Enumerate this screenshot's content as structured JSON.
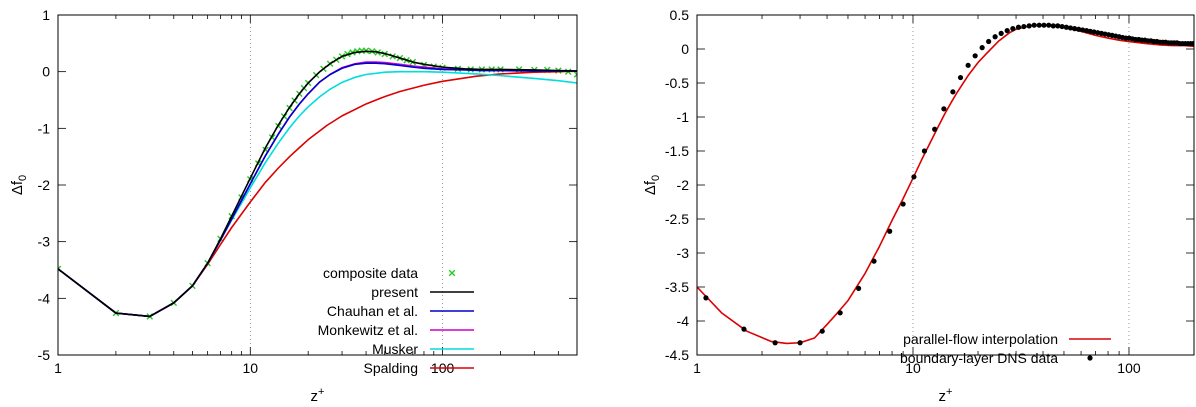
{
  "chart_data": [
    {
      "type": "line",
      "title": "",
      "xlabel": "z",
      "xlabel_sup": "+",
      "ylabel": "Δf",
      "ylabel_sub": "0",
      "x_scale": "log",
      "xlim": [
        1,
        500
      ],
      "ylim": [
        -5,
        1
      ],
      "x_ticks": [
        {
          "value": 1,
          "label": "1"
        },
        {
          "value": 10,
          "label": "10"
        },
        {
          "value": 100,
          "label": "100"
        }
      ],
      "y_ticks": [
        {
          "value": 1,
          "label": "1"
        },
        {
          "value": 0,
          "label": "0"
        },
        {
          "value": -1,
          "label": "-1"
        },
        {
          "value": -2,
          "label": "-2"
        },
        {
          "value": -3,
          "label": "-3"
        },
        {
          "value": -4,
          "label": "-4"
        },
        {
          "value": -5,
          "label": "-5"
        }
      ],
      "grid": "dotted",
      "legend_position": "bottom-right",
      "series": [
        {
          "name": "composite data",
          "style": "markers",
          "marker": "x",
          "color": "#22cc22",
          "x": [
            1,
            2,
            3,
            4,
            5,
            6,
            7,
            8,
            9,
            10,
            11,
            12,
            13,
            14,
            15,
            16,
            17,
            18,
            19,
            20,
            22,
            24,
            26,
            28,
            30,
            32,
            34,
            36,
            38,
            40,
            43,
            46,
            50,
            55,
            60,
            65,
            70,
            80,
            90,
            100,
            120,
            140,
            160,
            180,
            200,
            250,
            300,
            350,
            400,
            450,
            500
          ],
          "y": [
            -3.48,
            -4.26,
            -4.32,
            -4.08,
            -3.78,
            -3.38,
            -2.95,
            -2.55,
            -2.22,
            -1.9,
            -1.62,
            -1.38,
            -1.16,
            -0.96,
            -0.79,
            -0.64,
            -0.51,
            -0.39,
            -0.29,
            -0.2,
            -0.06,
            0.05,
            0.14,
            0.21,
            0.27,
            0.31,
            0.34,
            0.36,
            0.37,
            0.37,
            0.36,
            0.34,
            0.31,
            0.27,
            0.24,
            0.2,
            0.17,
            0.12,
            0.09,
            0.07,
            0.05,
            0.04,
            0.04,
            0.04,
            0.04,
            0.04,
            0.03,
            0.03,
            0.02,
            0.0,
            -0.05
          ]
        },
        {
          "name": "present",
          "style": "line",
          "color": "#000000",
          "x": [
            1,
            2,
            3,
            4,
            5,
            6,
            7,
            8,
            10,
            12,
            14,
            16,
            18,
            20,
            23,
            26,
            30,
            35,
            40,
            45,
            50,
            60,
            70,
            80,
            100,
            130,
            160,
            200,
            300,
            400,
            500
          ],
          "y": [
            -3.48,
            -4.26,
            -4.32,
            -4.08,
            -3.78,
            -3.38,
            -2.95,
            -2.55,
            -1.88,
            -1.34,
            -0.94,
            -0.63,
            -0.39,
            -0.2,
            0.0,
            0.14,
            0.27,
            0.34,
            0.36,
            0.35,
            0.32,
            0.24,
            0.17,
            0.13,
            0.08,
            0.05,
            0.04,
            0.04,
            0.03,
            0.02,
            0.01
          ]
        },
        {
          "name": "Chauhan et al.",
          "style": "line",
          "color": "#0000cc",
          "x": [
            1,
            2,
            3,
            4,
            5,
            6,
            7,
            8,
            10,
            12,
            14,
            16,
            18,
            20,
            23,
            26,
            30,
            35,
            40,
            45,
            50,
            60,
            70,
            80,
            100,
            130,
            160,
            200,
            300,
            400,
            500
          ],
          "y": [
            -3.48,
            -4.26,
            -4.32,
            -4.08,
            -3.78,
            -3.38,
            -2.97,
            -2.6,
            -1.98,
            -1.48,
            -1.1,
            -0.8,
            -0.57,
            -0.39,
            -0.18,
            -0.05,
            0.06,
            0.13,
            0.15,
            0.15,
            0.14,
            0.11,
            0.08,
            0.06,
            0.04,
            0.03,
            0.02,
            0.02,
            0.01,
            0.01,
            0.01
          ]
        },
        {
          "name": "Monkewitz et al.",
          "style": "line",
          "color": "#cc00cc",
          "x": [
            1,
            2,
            3,
            4,
            5,
            6,
            7,
            8,
            10,
            12,
            14,
            16,
            18,
            20,
            23,
            26,
            30,
            35,
            40,
            45,
            50,
            60,
            70,
            80,
            100,
            130,
            160,
            200,
            300,
            400,
            500
          ],
          "y": [
            -3.48,
            -4.26,
            -4.32,
            -4.08,
            -3.78,
            -3.38,
            -2.97,
            -2.6,
            -1.98,
            -1.48,
            -1.1,
            -0.8,
            -0.57,
            -0.39,
            -0.18,
            -0.05,
            0.07,
            0.14,
            0.17,
            0.17,
            0.16,
            0.13,
            0.1,
            0.08,
            0.05,
            0.04,
            0.03,
            0.02,
            0.02,
            0.01,
            0.01
          ]
        },
        {
          "name": "Musker",
          "style": "line",
          "color": "#00dddd",
          "x": [
            1,
            2,
            3,
            4,
            5,
            6,
            7,
            8,
            10,
            12,
            14,
            16,
            18,
            20,
            23,
            26,
            30,
            35,
            40,
            50,
            60,
            80,
            100,
            150,
            200,
            300,
            400,
            500
          ],
          "y": [
            -3.48,
            -4.26,
            -4.32,
            -4.08,
            -3.78,
            -3.38,
            -2.97,
            -2.62,
            -2.05,
            -1.6,
            -1.26,
            -0.99,
            -0.78,
            -0.62,
            -0.44,
            -0.31,
            -0.19,
            -0.1,
            -0.05,
            -0.01,
            0.0,
            0.0,
            -0.01,
            -0.04,
            -0.07,
            -0.12,
            -0.16,
            -0.2
          ]
        },
        {
          "name": "Spalding",
          "style": "line",
          "color": "#dd0000",
          "x": [
            1,
            2,
            3,
            4,
            5,
            6,
            7,
            8,
            10,
            12,
            14,
            16,
            18,
            20,
            25,
            30,
            40,
            50,
            60,
            80,
            100,
            150,
            200,
            300,
            400,
            500
          ],
          "y": [
            -3.48,
            -4.26,
            -4.32,
            -4.08,
            -3.78,
            -3.4,
            -3.05,
            -2.75,
            -2.3,
            -1.95,
            -1.7,
            -1.5,
            -1.34,
            -1.2,
            -0.95,
            -0.78,
            -0.57,
            -0.44,
            -0.35,
            -0.24,
            -0.17,
            -0.08,
            -0.04,
            -0.01,
            0.0,
            0.01
          ]
        }
      ]
    },
    {
      "type": "line",
      "title": "",
      "xlabel": "z",
      "xlabel_sup": "+",
      "ylabel": "Δf",
      "ylabel_sub": "0",
      "x_scale": "log",
      "xlim": [
        1,
        200
      ],
      "ylim": [
        -4.5,
        0.5
      ],
      "x_ticks": [
        {
          "value": 1,
          "label": "1"
        },
        {
          "value": 10,
          "label": "10"
        },
        {
          "value": 100,
          "label": "100"
        }
      ],
      "y_ticks": [
        {
          "value": 0.5,
          "label": "0.5"
        },
        {
          "value": 0,
          "label": "0"
        },
        {
          "value": -0.5,
          "label": "-0.5"
        },
        {
          "value": -1,
          "label": "-1"
        },
        {
          "value": -1.5,
          "label": "-1.5"
        },
        {
          "value": -2,
          "label": "-2"
        },
        {
          "value": -2.5,
          "label": "-2.5"
        },
        {
          "value": -3,
          "label": "-3"
        },
        {
          "value": -3.5,
          "label": "-3.5"
        },
        {
          "value": -4,
          "label": "-4"
        },
        {
          "value": -4.5,
          "label": "-4.5"
        }
      ],
      "grid": "dotted",
      "legend_position": "bottom-right",
      "series": [
        {
          "name": "parallel-flow interpolation",
          "style": "line",
          "color": "#dd0000",
          "x": [
            1,
            1.3,
            1.7,
            2.2,
            2.6,
            3,
            3.5,
            4,
            4.5,
            5,
            6,
            7,
            8,
            9,
            10,
            11,
            12,
            13,
            14,
            15,
            16,
            18,
            20,
            22,
            25,
            28,
            30,
            35,
            40,
            45,
            50,
            60,
            70,
            80,
            90,
            100,
            120,
            140,
            160,
            180,
            200
          ],
          "y": [
            -3.5,
            -3.88,
            -4.15,
            -4.3,
            -4.33,
            -4.32,
            -4.25,
            -4.05,
            -3.87,
            -3.7,
            -3.3,
            -2.9,
            -2.52,
            -2.2,
            -1.9,
            -1.62,
            -1.38,
            -1.16,
            -0.96,
            -0.79,
            -0.64,
            -0.39,
            -0.2,
            -0.06,
            0.12,
            0.24,
            0.29,
            0.34,
            0.35,
            0.34,
            0.32,
            0.26,
            0.2,
            0.16,
            0.13,
            0.11,
            0.08,
            0.06,
            0.05,
            0.05,
            0.04
          ]
        },
        {
          "name": "boundary-layer DNS data",
          "style": "markers",
          "marker": "dot",
          "color": "#000000",
          "x": [
            1.1,
            1.65,
            2.3,
            3,
            3.8,
            4.6,
            5.6,
            6.6,
            7.8,
            9,
            10.1,
            11.3,
            12.6,
            13.9,
            15.3,
            16.6,
            18,
            19.4,
            20.9,
            22.4,
            24,
            25.6,
            27.3,
            29,
            30.8,
            32.6,
            34.5,
            36.4,
            38.4,
            40.4,
            42.5,
            44.6,
            46.8,
            49,
            51.3,
            53.6,
            56,
            58.5,
            61,
            63.6,
            66.2,
            68.9,
            71.7,
            74.6,
            77.5,
            80.5,
            83.6,
            86.8,
            90,
            93.3,
            96.7,
            100.1,
            103.6,
            107.2,
            110.9,
            114.7,
            118.5,
            122.4,
            126.4,
            130.5,
            134.7,
            139,
            143.4,
            147.9,
            152.5,
            157.2,
            162,
            166.9,
            171.9,
            177,
            182.2,
            187.5,
            192.9,
            198.4
          ],
          "y": [
            -3.66,
            -4.12,
            -4.32,
            -4.32,
            -4.15,
            -3.88,
            -3.52,
            -3.12,
            -2.68,
            -2.28,
            -1.88,
            -1.5,
            -1.18,
            -0.88,
            -0.63,
            -0.42,
            -0.24,
            -0.1,
            0.02,
            0.11,
            0.18,
            0.23,
            0.27,
            0.3,
            0.32,
            0.33,
            0.34,
            0.35,
            0.35,
            0.35,
            0.35,
            0.34,
            0.34,
            0.33,
            0.32,
            0.31,
            0.3,
            0.29,
            0.28,
            0.27,
            0.26,
            0.25,
            0.24,
            0.23,
            0.22,
            0.21,
            0.2,
            0.19,
            0.18,
            0.17,
            0.16,
            0.16,
            0.15,
            0.14,
            0.14,
            0.13,
            0.13,
            0.12,
            0.12,
            0.11,
            0.11,
            0.1,
            0.1,
            0.1,
            0.09,
            0.09,
            0.09,
            0.09,
            0.08,
            0.08,
            0.08,
            0.08,
            0.08,
            0.08
          ]
        }
      ]
    }
  ]
}
